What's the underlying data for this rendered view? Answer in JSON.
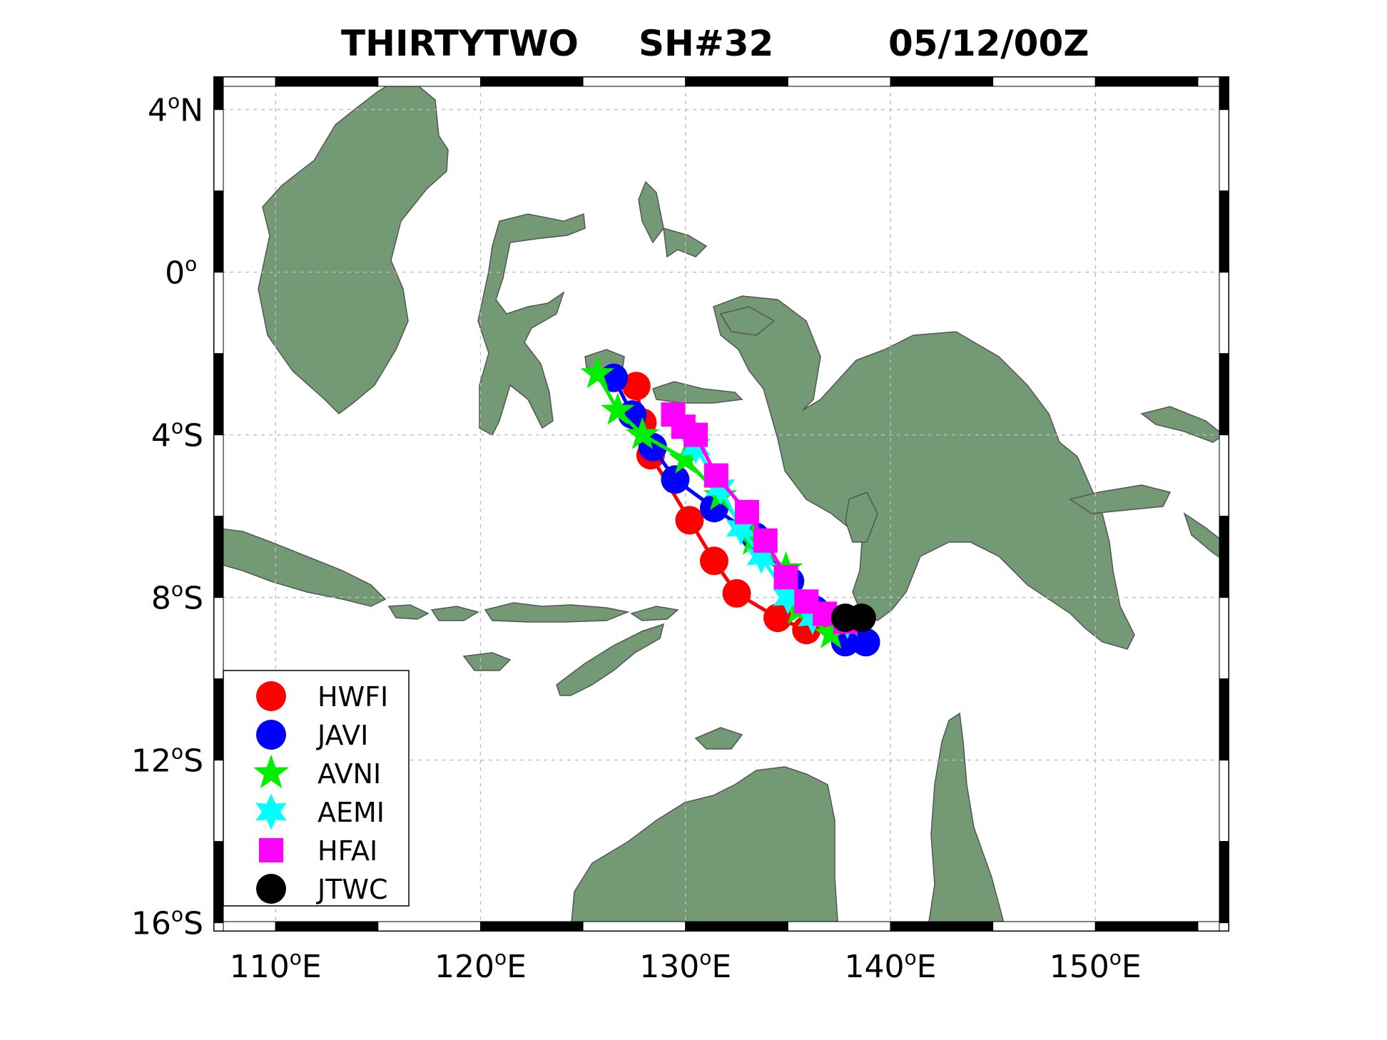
{
  "title": {
    "storm_name": "THIRTYTWO",
    "storm_id": "SH#32",
    "datetime": "05/12/00Z"
  },
  "map": {
    "lon_range": [
      107,
      156.5
    ],
    "lat_range": [
      -16.2,
      4.8
    ],
    "land_color": "#739a74",
    "grid": true,
    "x_ticks": [
      {
        "lon": 110,
        "num": "110",
        "deg": "o",
        "hemi": "E"
      },
      {
        "lon": 120,
        "num": "120",
        "deg": "o",
        "hemi": "E"
      },
      {
        "lon": 130,
        "num": "130",
        "deg": "o",
        "hemi": "E"
      },
      {
        "lon": 140,
        "num": "140",
        "deg": "o",
        "hemi": "E"
      },
      {
        "lon": 150,
        "num": "150",
        "deg": "o",
        "hemi": "E"
      }
    ],
    "y_ticks": [
      {
        "lat": 4,
        "num": "4",
        "deg": "o",
        "hemi": "N"
      },
      {
        "lat": 0,
        "num": "0",
        "deg": "o",
        "hemi": ""
      },
      {
        "lat": -4,
        "num": "4",
        "deg": "o",
        "hemi": "S"
      },
      {
        "lat": -8,
        "num": "8",
        "deg": "o",
        "hemi": "S"
      },
      {
        "lat": -12,
        "num": "12",
        "deg": "o",
        "hemi": "S"
      },
      {
        "lat": -16,
        "num": "16",
        "deg": "o",
        "hemi": "S"
      }
    ]
  },
  "legend": {
    "placement": "bottom-left",
    "entries": [
      "HWFI",
      "JAVI",
      "AVNI",
      "AEMI",
      "HFAI",
      "JTWC"
    ]
  },
  "chart_data": {
    "type": "scatter",
    "title": "THIRTYTWO   SH#32        05/12/00Z",
    "xlabel": "",
    "ylabel": "",
    "xlim": [
      107,
      156.5
    ],
    "ylim": [
      -16.2,
      4.8
    ],
    "series": [
      {
        "name": "HWFI",
        "color": "#ff0000",
        "marker": "circle",
        "points": [
          [
            137.7,
            -8.6
          ],
          [
            135.9,
            -8.8
          ],
          [
            134.5,
            -8.5
          ],
          [
            132.5,
            -7.9
          ],
          [
            131.4,
            -7.1
          ],
          [
            130.2,
            -6.1
          ],
          [
            128.3,
            -4.5
          ],
          [
            127.9,
            -3.7
          ],
          [
            127.6,
            -2.8
          ]
        ]
      },
      {
        "name": "JAVI",
        "color": "#0000ff",
        "marker": "circle",
        "points": [
          [
            137.9,
            -8.6
          ],
          [
            138.8,
            -9.1
          ],
          [
            137.8,
            -9.1
          ],
          [
            136.3,
            -8.3
          ],
          [
            135.1,
            -7.6
          ],
          [
            133.4,
            -6.5
          ],
          [
            131.4,
            -5.8
          ],
          [
            129.5,
            -5.1
          ],
          [
            128.4,
            -4.3
          ],
          [
            127.4,
            -3.5
          ],
          [
            126.5,
            -2.6
          ]
        ]
      },
      {
        "name": "AVNI",
        "color": "#00ee00",
        "marker": "star5",
        "points": [
          [
            137.9,
            -8.6
          ],
          [
            137.1,
            -8.9
          ],
          [
            135.5,
            -8.3
          ],
          [
            134.9,
            -7.3
          ],
          [
            133.3,
            -6.6
          ],
          [
            131.7,
            -5.5
          ],
          [
            130.0,
            -4.6
          ],
          [
            127.9,
            -4.0
          ],
          [
            126.7,
            -3.4
          ],
          [
            125.7,
            -2.5
          ]
        ]
      },
      {
        "name": "AEMI",
        "color": "#00ffff",
        "marker": "star6",
        "points": [
          [
            137.9,
            -8.6
          ],
          [
            136.2,
            -8.5
          ],
          [
            135.0,
            -8.0
          ],
          [
            133.7,
            -7.0
          ],
          [
            132.7,
            -6.3
          ],
          [
            131.7,
            -5.3
          ],
          [
            130.5,
            -4.3
          ]
        ]
      },
      {
        "name": "HFAI",
        "color": "#ff00ff",
        "marker": "square",
        "points": [
          [
            137.8,
            -8.6
          ],
          [
            136.8,
            -8.4
          ],
          [
            135.9,
            -8.1
          ],
          [
            134.9,
            -7.5
          ],
          [
            133.9,
            -6.6
          ],
          [
            133.0,
            -5.9
          ],
          [
            131.5,
            -5.0
          ],
          [
            130.5,
            -4.0
          ],
          [
            129.9,
            -3.8
          ],
          [
            129.4,
            -3.5
          ]
        ]
      },
      {
        "name": "JTWC",
        "color": "#000000",
        "marker": "circle",
        "points": [
          [
            138.6,
            -8.5
          ],
          [
            137.8,
            -8.5
          ]
        ]
      }
    ]
  }
}
